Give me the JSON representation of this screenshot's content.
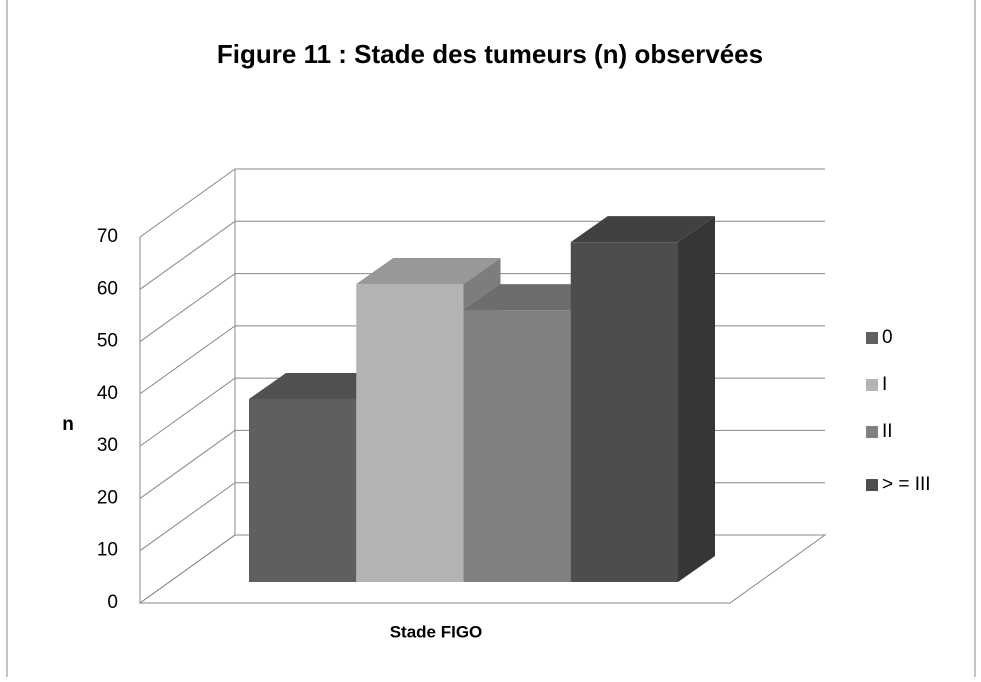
{
  "chart_data": {
    "type": "bar3d",
    "title": "Figure 11 : Stade des tumeurs (n) observées",
    "y_label": "n",
    "x_label": "Stade FIGO",
    "series": [
      {
        "name": "0",
        "color": "#5f5f5f",
        "values": [
          35
        ]
      },
      {
        "name": "I",
        "color": "#b3b3b3",
        "values": [
          57
        ]
      },
      {
        "name": "II",
        "color": "#808080",
        "values": [
          52
        ]
      },
      {
        "name": "> = III",
        "color": "#4d4d4d",
        "values": [
          65
        ]
      }
    ],
    "ylim": [
      0,
      70
    ],
    "yticks": [
      0,
      10,
      20,
      30,
      40,
      50,
      60,
      70
    ],
    "grid": true,
    "legend": "right"
  }
}
